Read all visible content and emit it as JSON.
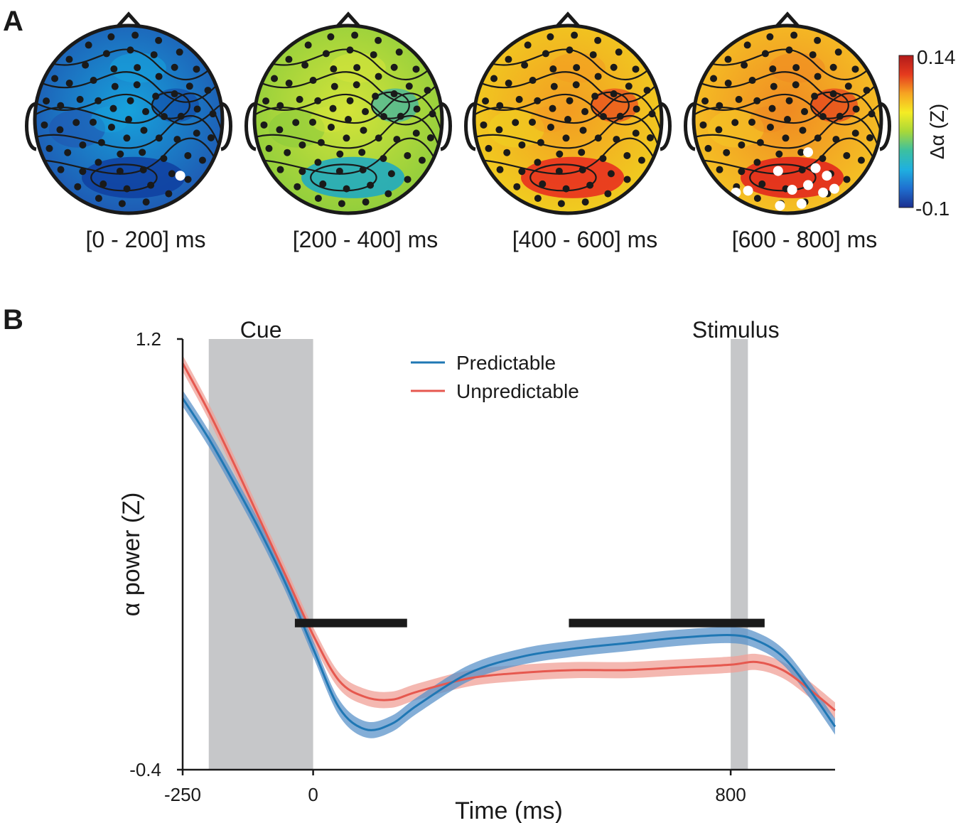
{
  "panels": {
    "a_label": "A",
    "b_label": "B"
  },
  "topomaps": [
    {
      "window": "[0 - 200] ms",
      "base": "#1f55b0",
      "mid": "#17a2dc",
      "hot": "#0f3fa0",
      "sig_count": 1
    },
    {
      "window": "[200 - 400] ms",
      "base": "#8ccc3c",
      "mid": "#d4e43a",
      "hot": "#1aa8c8",
      "sig_count": 0
    },
    {
      "window": "[400 - 600] ms",
      "base": "#f0d020",
      "mid": "#f39c22",
      "hot": "#e8281e",
      "sig_count": 0
    },
    {
      "window": "[600 - 800] ms",
      "base": "#f5c625",
      "mid": "#f08a22",
      "hot": "#e0201c",
      "sig_count": 12
    }
  ],
  "colorbar": {
    "max": "0.14",
    "min": "-0.1",
    "label": "Δα (Z)",
    "colors": [
      "#1b2f8f",
      "#1f6fd0",
      "#1fb0e0",
      "#3cc0a0",
      "#a8d838",
      "#f5ec24",
      "#f6a422",
      "#e53a1e",
      "#b21a1a"
    ]
  },
  "chart_data": {
    "type": "line",
    "title": "",
    "xlabel": "Time (ms)",
    "ylabel": "α power (Z)",
    "xlim": [
      -250,
      1000
    ],
    "ylim": [
      -0.4,
      1.2
    ],
    "xticks": [
      {
        "value": -250,
        "label": "-250"
      },
      {
        "value": 0,
        "label": "0"
      },
      {
        "value": 800,
        "label": "800"
      }
    ],
    "yticks": [
      {
        "value": 1.2,
        "label": "1.2"
      },
      {
        "value": -0.4,
        "label": "-0.4"
      }
    ],
    "shaded_regions": [
      {
        "label": "Cue",
        "x0": -200,
        "x1": 0
      },
      {
        "label": "Stimulus",
        "x0": 800,
        "x1": 833
      }
    ],
    "significance_bars": [
      {
        "x0": -35,
        "x1": 180,
        "y": 0.145
      },
      {
        "x0": 490,
        "x1": 865,
        "y": 0.145
      }
    ],
    "legend": {
      "position": "top-center"
    },
    "series": [
      {
        "name": "Predictable",
        "color": "#1f77b4",
        "band": "#5b93c9",
        "x": [
          -250,
          -200,
          -150,
          -100,
          -50,
          0,
          50,
          100,
          150,
          200,
          300,
          400,
          500,
          600,
          700,
          800,
          850,
          900,
          950,
          1000
        ],
        "y": [
          0.98,
          0.83,
          0.66,
          0.48,
          0.28,
          0.05,
          -0.17,
          -0.25,
          -0.23,
          -0.16,
          -0.04,
          0.02,
          0.05,
          0.07,
          0.09,
          0.1,
          0.08,
          0.02,
          -0.1,
          -0.24
        ],
        "err": 0.03
      },
      {
        "name": "Unpredictable",
        "color": "#e6584f",
        "band": "#f0a097",
        "x": [
          -250,
          -200,
          -150,
          -100,
          -50,
          0,
          50,
          100,
          150,
          200,
          300,
          400,
          500,
          600,
          700,
          800,
          850,
          900,
          950,
          1000
        ],
        "y": [
          1.11,
          0.93,
          0.73,
          0.52,
          0.31,
          0.1,
          -0.07,
          -0.13,
          -0.14,
          -0.11,
          -0.06,
          -0.04,
          -0.03,
          -0.03,
          -0.02,
          -0.01,
          0.0,
          -0.03,
          -0.1,
          -0.18
        ],
        "err": 0.03
      }
    ]
  }
}
